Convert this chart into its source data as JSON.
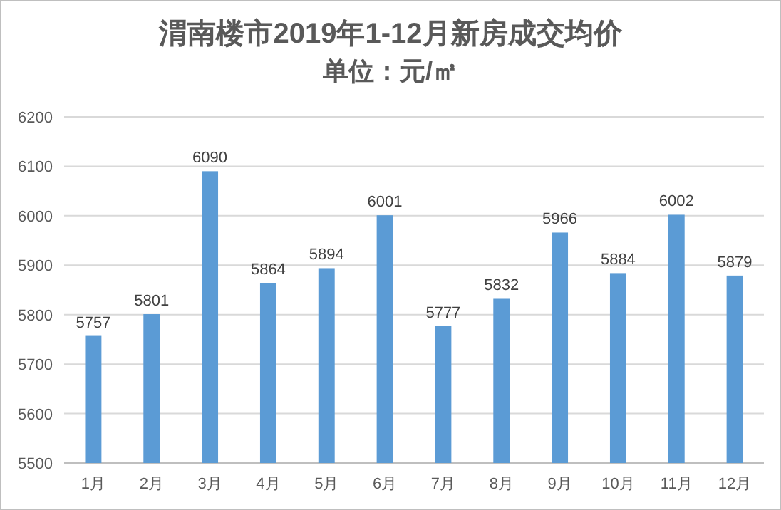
{
  "chart_data": {
    "type": "bar",
    "title": "渭南楼市2019年1-12月新房成交均价",
    "subtitle": "单位：元/㎡",
    "categories": [
      "1月",
      "2月",
      "3月",
      "4月",
      "5月",
      "6月",
      "7月",
      "8月",
      "9月",
      "10月",
      "11月",
      "12月"
    ],
    "values": [
      5757,
      5801,
      6090,
      5864,
      5894,
      6001,
      5777,
      5832,
      5966,
      5884,
      6002,
      5879
    ],
    "color": "#5b9bd5",
    "ylim": [
      5500,
      6200
    ],
    "yticks": [
      5500,
      5600,
      5700,
      5800,
      5900,
      6000,
      6100,
      6200
    ],
    "grid": true,
    "data_labels": true
  }
}
